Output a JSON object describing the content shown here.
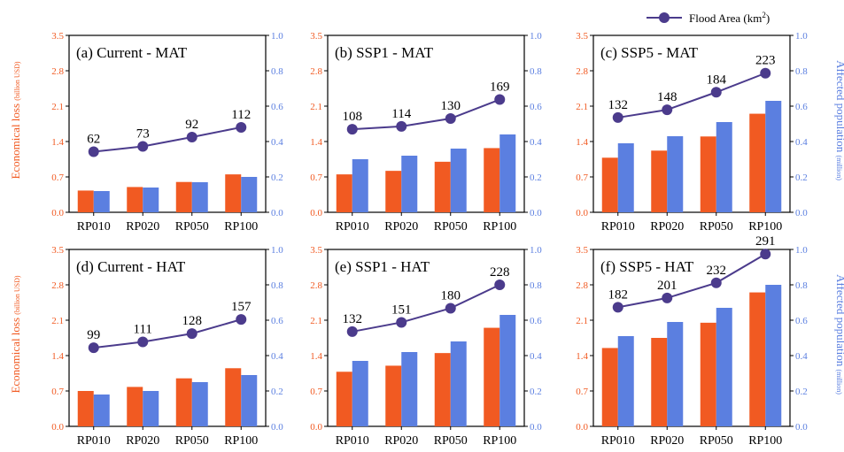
{
  "legend": {
    "label": "Flood Area (km",
    "superscript": "2",
    "close": ")"
  },
  "colors": {
    "econ": "#f15a22",
    "pop": "#5b7fe0",
    "area": "#4b3b8c"
  },
  "axes": {
    "left_label_main": "Economical loss",
    "left_label_unit": "(billion USD)",
    "right_label_main": "Affected population",
    "right_label_unit": "(million)"
  },
  "chart_data": [
    {
      "type": "bar",
      "title": "(a) Current - MAT",
      "categories": [
        "RP010",
        "RP020",
        "RP050",
        "RP100"
      ],
      "left_ylim": [
        0,
        3.5
      ],
      "left_ticks": [
        "0.0",
        "0.7",
        "1.4",
        "2.1",
        "2.8",
        "3.5"
      ],
      "right_ylim": [
        0,
        1.0
      ],
      "right_ticks": [
        "0.0",
        "0.2",
        "0.4",
        "0.6",
        "0.8",
        "1.0"
      ],
      "series": [
        {
          "name": "Economical loss",
          "axis": "left",
          "values": [
            0.43,
            0.5,
            0.6,
            0.75
          ]
        },
        {
          "name": "Affected population",
          "axis": "right",
          "values": [
            0.12,
            0.14,
            0.17,
            0.2
          ]
        },
        {
          "name": "Flood Area (km2)",
          "type": "line",
          "values": [
            62,
            73,
            92,
            112
          ],
          "labels": [
            "62",
            "73",
            "92",
            "112"
          ]
        }
      ]
    },
    {
      "type": "bar",
      "title": "(b) SSP1 - MAT",
      "categories": [
        "RP010",
        "RP020",
        "RP050",
        "RP100"
      ],
      "left_ylim": [
        0,
        3.5
      ],
      "left_ticks": [
        "0.0",
        "0.7",
        "1.4",
        "2.1",
        "2.8",
        "3.5"
      ],
      "right_ylim": [
        0,
        1.0
      ],
      "right_ticks": [
        "0.0",
        "0.2",
        "0.4",
        "0.6",
        "0.8",
        "1.0"
      ],
      "series": [
        {
          "name": "Economical loss",
          "axis": "left",
          "values": [
            0.75,
            0.82,
            1.0,
            1.27
          ]
        },
        {
          "name": "Affected population",
          "axis": "right",
          "values": [
            0.3,
            0.32,
            0.36,
            0.44
          ]
        },
        {
          "name": "Flood Area (km2)",
          "type": "line",
          "values": [
            108,
            114,
            130,
            169
          ],
          "labels": [
            "108",
            "114",
            "130",
            "169"
          ]
        }
      ]
    },
    {
      "type": "bar",
      "title": "(c) SSP5 - MAT",
      "categories": [
        "RP010",
        "RP020",
        "RP050",
        "RP100"
      ],
      "left_ylim": [
        0,
        3.5
      ],
      "left_ticks": [
        "0.0",
        "0.7",
        "1.4",
        "2.1",
        "2.8",
        "3.5"
      ],
      "right_ylim": [
        0,
        1.0
      ],
      "right_ticks": [
        "0.0",
        "0.2",
        "0.4",
        "0.6",
        "0.8",
        "1.0"
      ],
      "series": [
        {
          "name": "Economical loss",
          "axis": "left",
          "values": [
            1.08,
            1.22,
            1.5,
            1.95
          ]
        },
        {
          "name": "Affected population",
          "axis": "right",
          "values": [
            0.39,
            0.43,
            0.51,
            0.63
          ]
        },
        {
          "name": "Flood Area (km2)",
          "type": "line",
          "values": [
            132,
            148,
            184,
            223
          ],
          "labels": [
            "132",
            "148",
            "184",
            "223"
          ]
        }
      ]
    },
    {
      "type": "bar",
      "title": "(d) Current - HAT",
      "categories": [
        "RP010",
        "RP020",
        "RP050",
        "RP100"
      ],
      "left_ylim": [
        0,
        3.5
      ],
      "left_ticks": [
        "0.0",
        "0.7",
        "1.4",
        "2.1",
        "2.8",
        "3.5"
      ],
      "right_ylim": [
        0,
        1.0
      ],
      "right_ticks": [
        "0.0",
        "0.2",
        "0.4",
        "0.6",
        "0.8",
        "1.0"
      ],
      "series": [
        {
          "name": "Economical loss",
          "axis": "left",
          "values": [
            0.7,
            0.78,
            0.95,
            1.15
          ]
        },
        {
          "name": "Affected population",
          "axis": "right",
          "values": [
            0.18,
            0.2,
            0.25,
            0.29
          ]
        },
        {
          "name": "Flood Area (km2)",
          "type": "line",
          "values": [
            99,
            111,
            128,
            157
          ],
          "labels": [
            "99",
            "111",
            "128",
            "157"
          ]
        }
      ]
    },
    {
      "type": "bar",
      "title": "(e) SSP1 - HAT",
      "categories": [
        "RP010",
        "RP020",
        "RP050",
        "RP100"
      ],
      "left_ylim": [
        0,
        3.5
      ],
      "left_ticks": [
        "0.0",
        "0.7",
        "1.4",
        "2.1",
        "2.8",
        "3.5"
      ],
      "right_ylim": [
        0,
        1.0
      ],
      "right_ticks": [
        "0.0",
        "0.2",
        "0.4",
        "0.6",
        "0.8",
        "1.0"
      ],
      "series": [
        {
          "name": "Economical loss",
          "axis": "left",
          "values": [
            1.08,
            1.2,
            1.45,
            1.95
          ]
        },
        {
          "name": "Affected population",
          "axis": "right",
          "values": [
            0.37,
            0.42,
            0.48,
            0.63
          ]
        },
        {
          "name": "Flood Area (km2)",
          "type": "line",
          "values": [
            132,
            151,
            180,
            228
          ],
          "labels": [
            "132",
            "151",
            "180",
            "228"
          ]
        }
      ]
    },
    {
      "type": "bar",
      "title": "(f) SSP5 - HAT",
      "categories": [
        "RP010",
        "RP020",
        "RP050",
        "RP100"
      ],
      "left_ylim": [
        0,
        3.5
      ],
      "left_ticks": [
        "0.0",
        "0.7",
        "1.4",
        "2.1",
        "2.8",
        "3.5"
      ],
      "right_ylim": [
        0,
        1.0
      ],
      "right_ticks": [
        "0.0",
        "0.2",
        "0.4",
        "0.6",
        "0.8",
        "1.0"
      ],
      "series": [
        {
          "name": "Economical loss",
          "axis": "left",
          "values": [
            1.55,
            1.75,
            2.05,
            2.65
          ]
        },
        {
          "name": "Affected population",
          "axis": "right",
          "values": [
            0.51,
            0.59,
            0.67,
            0.8
          ]
        },
        {
          "name": "Flood Area (km2)",
          "type": "line",
          "values": [
            182,
            201,
            232,
            291
          ],
          "labels": [
            "182",
            "201",
            "232",
            "291"
          ]
        }
      ]
    }
  ]
}
